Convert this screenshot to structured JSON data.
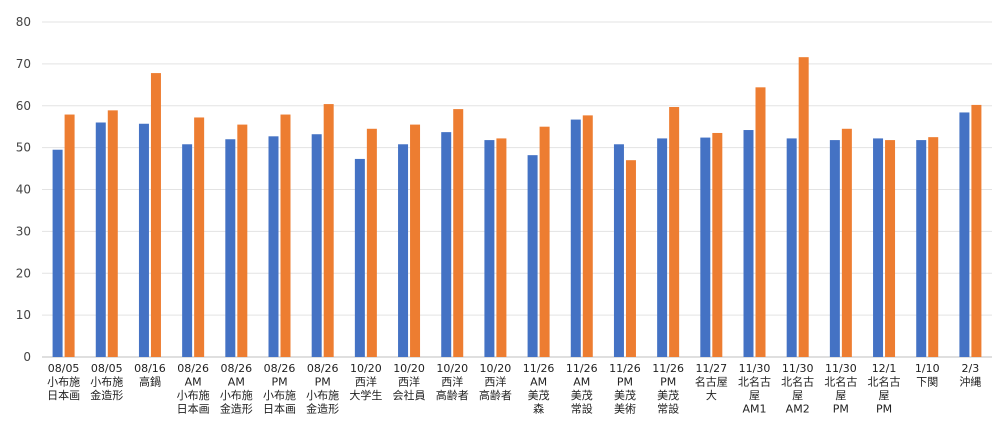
{
  "chart_data": {
    "type": "bar",
    "title": "",
    "xlabel": "",
    "ylabel": "",
    "ylim": [
      0,
      80
    ],
    "yticks": [
      0,
      10,
      20,
      30,
      40,
      50,
      60,
      70,
      80
    ],
    "grid": true,
    "legend": "none",
    "categories": [
      [
        "08/05",
        "小布施",
        "日本画"
      ],
      [
        "08/05",
        "小布施",
        "金造形"
      ],
      [
        "08/16",
        "高鍋"
      ],
      [
        "08/26",
        "AM",
        "小布施",
        "日本画"
      ],
      [
        "08/26",
        "AM",
        "小布施",
        "金造形"
      ],
      [
        "08/26",
        "PM",
        "小布施",
        "日本画"
      ],
      [
        "08/26",
        "PM",
        "小布施",
        "金造形"
      ],
      [
        "10/20",
        "西洋",
        "大学生"
      ],
      [
        "10/20",
        "西洋",
        "会社員"
      ],
      [
        "10/20",
        "西洋",
        "高齢者"
      ],
      [
        "10/20",
        "西洋",
        "高齢者"
      ],
      [
        "11/26",
        "AM",
        "美茂",
        "森"
      ],
      [
        "11/26",
        "AM",
        "美茂",
        "常設"
      ],
      [
        "11/26",
        "PM",
        "美茂",
        "美術"
      ],
      [
        "11/26",
        "PM",
        "美茂",
        "常設"
      ],
      [
        "11/27",
        "名古屋",
        "大"
      ],
      [
        "11/30",
        "北名古",
        "屋",
        "AM1"
      ],
      [
        "11/30",
        "北名古",
        "屋",
        "AM2"
      ],
      [
        "11/30",
        "北名古",
        "屋",
        "PM"
      ],
      [
        "12/1",
        "北名古",
        "屋",
        "PM"
      ],
      [
        "1/10",
        "下関"
      ],
      [
        "2/3",
        "沖縄"
      ]
    ],
    "series": [
      {
        "color": "#4472C4",
        "values": [
          49.5,
          56,
          55.7,
          50.8,
          52,
          52.7,
          53.2,
          47.3,
          50.8,
          53.7,
          51.8,
          48.2,
          56.7,
          50.8,
          52.2,
          52.4,
          54.2,
          52.2,
          51.8,
          52.2,
          51.8,
          58.4
        ]
      },
      {
        "color": "#ED7D31",
        "values": [
          57.9,
          58.9,
          67.8,
          57.2,
          55.5,
          57.9,
          60.4,
          54.5,
          55.5,
          59.2,
          52.2,
          55,
          57.7,
          47,
          59.7,
          53.5,
          64.4,
          71.6,
          54.5,
          51.8,
          52.5,
          60.2
        ]
      }
    ]
  }
}
